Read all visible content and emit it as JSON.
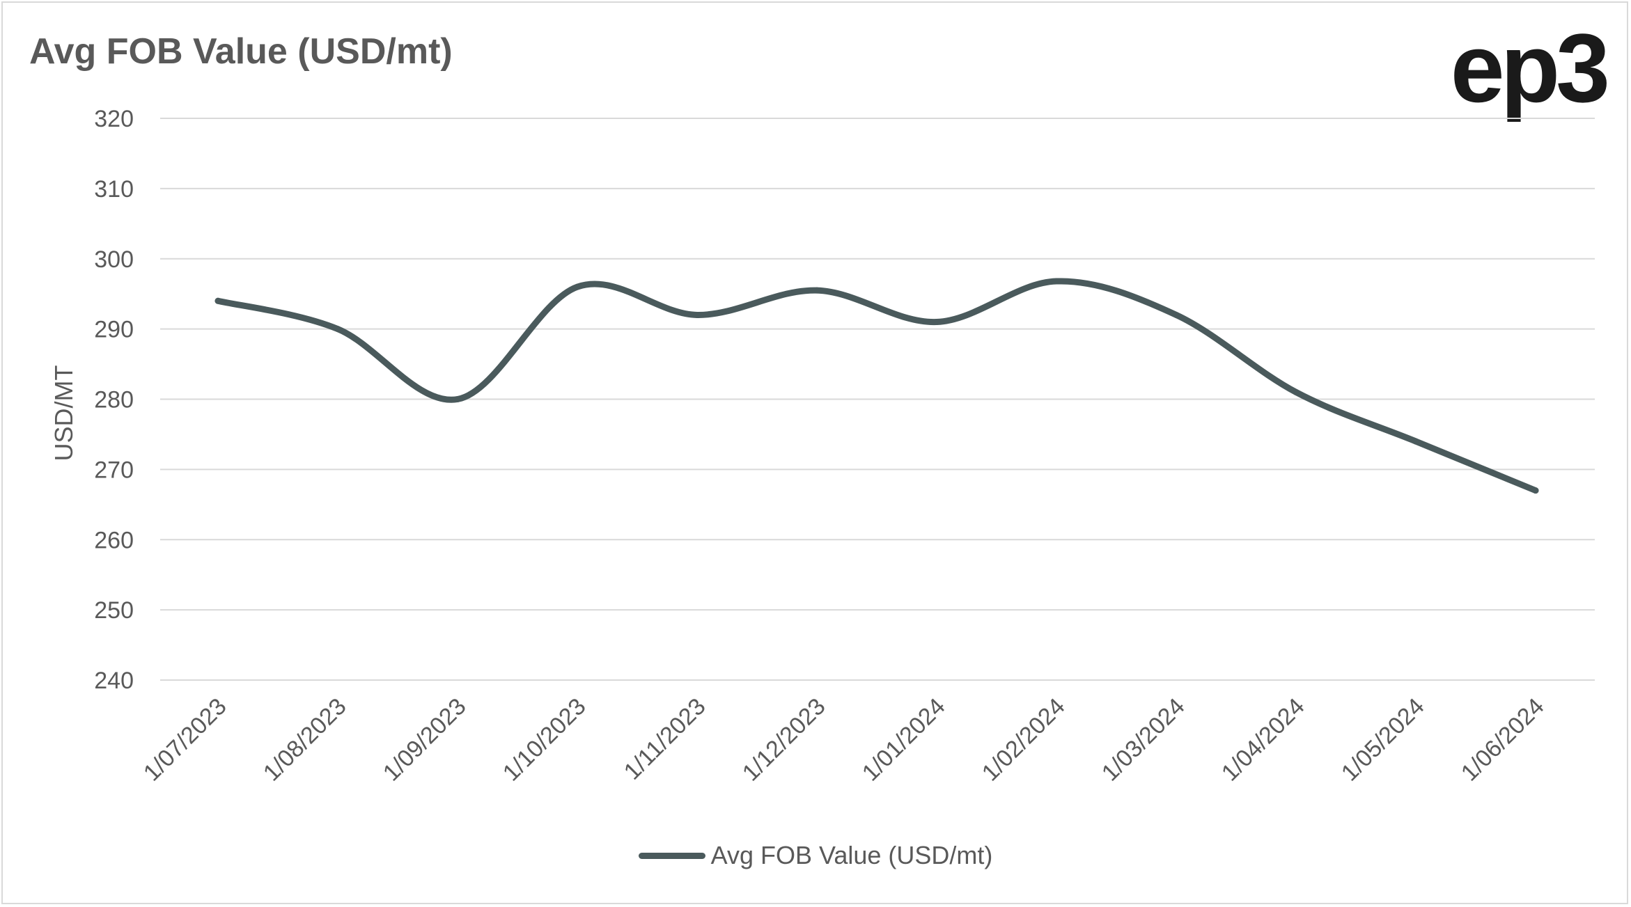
{
  "header": {
    "title": "Avg FOB Value (USD/mt)",
    "logo_text": "ep3"
  },
  "colors": {
    "series": "#4a5a5c",
    "grid": "#d9d9d9",
    "text": "#595959"
  },
  "chart_data": {
    "type": "line",
    "title": "Avg FOB Value (USD/mt)",
    "xlabel": "",
    "ylabel": "USD/MT",
    "ylim": [
      240,
      320
    ],
    "yticks": [
      240,
      250,
      260,
      270,
      280,
      290,
      300,
      310,
      320
    ],
    "categories": [
      "1/07/2023",
      "1/08/2023",
      "1/09/2023",
      "1/10/2023",
      "1/11/2023",
      "1/12/2023",
      "1/01/2024",
      "1/02/2024",
      "1/03/2024",
      "1/04/2024",
      "1/05/2024",
      "1/06/2024"
    ],
    "series": [
      {
        "name": "Avg FOB Value (USD/mt)",
        "values": [
          294,
          290,
          280,
          296,
          292,
          295.5,
          291,
          296.8,
          292,
          281,
          274,
          267
        ]
      }
    ],
    "grid": true,
    "smooth": true,
    "legend_position": "bottom"
  }
}
